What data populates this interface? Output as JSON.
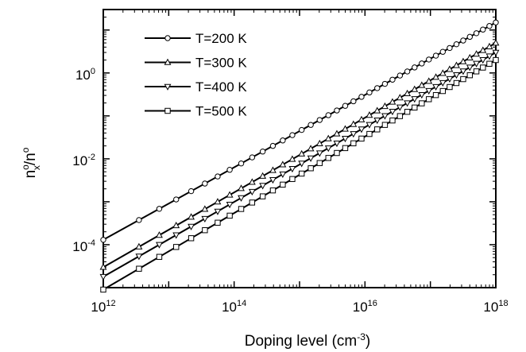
{
  "chart_data": {
    "type": "line",
    "x_scale": "log",
    "y_scale": "log",
    "xlim": [
      1000000000000.0,
      1e+18
    ],
    "ylim": [
      1e-05,
      30
    ],
    "x_ticks": [
      {
        "base": "10",
        "exp": "12",
        "value": 1000000000000.0
      },
      {
        "base": "10",
        "exp": "14",
        "value": 100000000000000.0
      },
      {
        "base": "10",
        "exp": "16",
        "value": 1e+16
      },
      {
        "base": "10",
        "exp": "18",
        "value": 1e+18
      }
    ],
    "y_ticks": [
      {
        "base": "10",
        "exp": "0",
        "value": 1
      },
      {
        "base": "10",
        "exp": "-2",
        "value": 0.01
      },
      {
        "base": "10",
        "exp": "-4",
        "value": 0.0001
      }
    ],
    "xlabel": {
      "main": "Doping level (cm",
      "sup": "-3",
      "tail": ")"
    },
    "ylabel": {
      "n1": "n",
      "sup1": "o",
      "sub1": "x",
      "slash": "/n",
      "sup2": "o"
    },
    "legend_position": "top-left",
    "series": [
      {
        "name": "T=200 K",
        "marker": "circle",
        "x_start": 1000000000000.0,
        "x_end": 1e+18,
        "y_start": 0.00013,
        "y_end": 15
      },
      {
        "name": "T=300 K",
        "marker": "triangle-up",
        "x_start": 1000000000000.0,
        "x_end": 1e+18,
        "y_start": 3e-05,
        "y_end": 5
      },
      {
        "name": "T=400 K",
        "marker": "triangle-down",
        "x_start": 1000000000000.0,
        "x_end": 1e+18,
        "y_start": 1.8e-05,
        "y_end": 3
      },
      {
        "name": "T=500 K",
        "marker": "square",
        "x_start": 1000000000000.0,
        "x_end": 1e+18,
        "y_start": 9e-06,
        "y_end": 2
      }
    ]
  }
}
